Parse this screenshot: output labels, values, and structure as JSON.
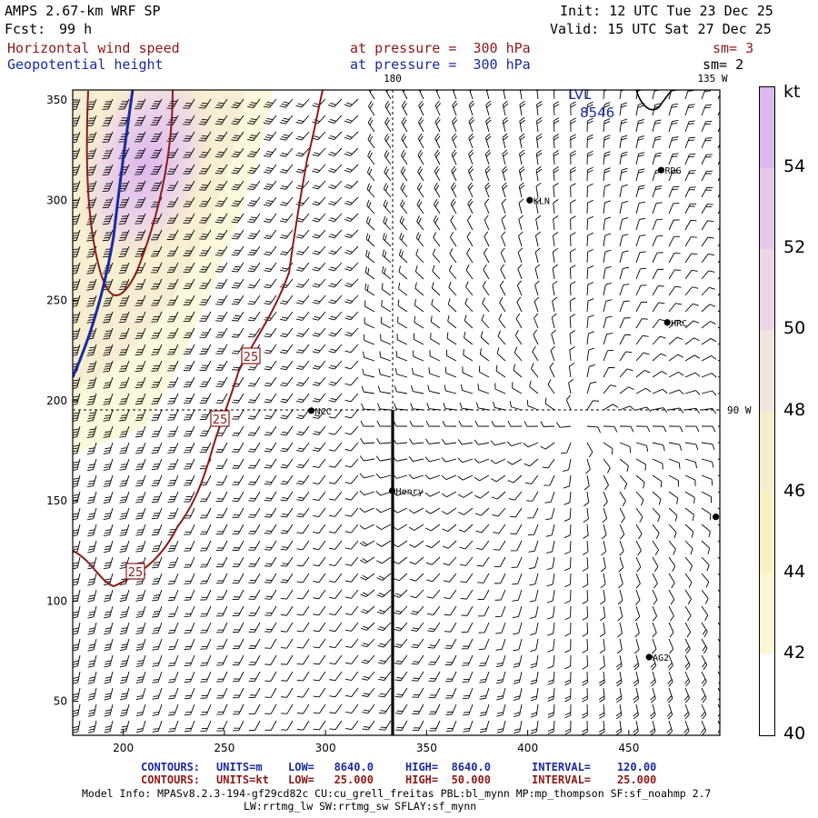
{
  "header": {
    "model": "AMPS 2.67-km WRF SP",
    "fcst_label": "Fcst:",
    "fcst_value": "99 h",
    "init": "Init: 12 UTC Tue 23 Dec 25",
    "valid": "Valid: 15 UTC Sat 27 Dec 25",
    "field1": "Horizontal wind speed",
    "field1_level": "at pressure =  300 hPa",
    "field1_sm": "sm= 3",
    "field2": "Geopotential height",
    "field2_level": "at pressure =  300 hPa",
    "field2_sm": "sm= 2"
  },
  "map": {
    "lon_labels": {
      "top_180": "180",
      "top_135w": "135 W",
      "right_90w": "90 W"
    },
    "x_ticks": [
      "200",
      "250",
      "300",
      "350",
      "400",
      "450"
    ],
    "y_ticks": [
      "350",
      "300",
      "250",
      "200",
      "150",
      "100",
      "50"
    ],
    "x_range": [
      175,
      495
    ],
    "y_range": [
      33,
      355
    ],
    "stations": [
      {
        "name": "RDG",
        "x": 466,
        "y": 315
      },
      {
        "name": "KLN",
        "x": 401,
        "y": 300
      },
      {
        "name": "HRC",
        "x": 469,
        "y": 239
      },
      {
        "name": "NCC",
        "x": 293,
        "y": 195
      },
      {
        "name": "Henry",
        "x": 333,
        "y": 155
      },
      {
        "name": "AG2",
        "x": 460,
        "y": 72
      },
      {
        "name": "",
        "x": 493,
        "y": 142
      }
    ],
    "contour_labels": [
      "25",
      "25",
      "25"
    ],
    "height_label_lvl": "LVL",
    "height_label_val": "8546"
  },
  "colorbar": {
    "unit": "kt",
    "labels": [
      "54",
      "52",
      "50",
      "48",
      "46",
      "44",
      "42",
      "40"
    ],
    "colors": [
      "#dcb8ec",
      "#e5c8ea",
      "#ecd6e8",
      "#f3e4e2",
      "#f6ecd0",
      "#f8f1c4",
      "#fbf7d6",
      "#ffffff"
    ]
  },
  "footer": {
    "c1_head": "CONTOURS:",
    "c1_units": "UNITS=m",
    "c1_low": "LOW=   8640.0",
    "c1_high": "HIGH=  8640.0",
    "c1_int": "INTERVAL=    120.00",
    "c2_head": "CONTOURS:",
    "c2_units": "UNITS=kt",
    "c2_low": "LOW=   25.000",
    "c2_high": "HIGH=  50.000",
    "c2_int": "INTERVAL=    25.000",
    "model_info": "Model Info: MPASv8.2.3-194-gf29cd82c CU:cu_grell_freitas PBL:bl_mynn MP:mp_thompson SF:sf_noahmp 2.7",
    "model_info2": "LW:rrtmg_lw SW:rrtmg_sw SFLAY:sf_mynn"
  }
}
